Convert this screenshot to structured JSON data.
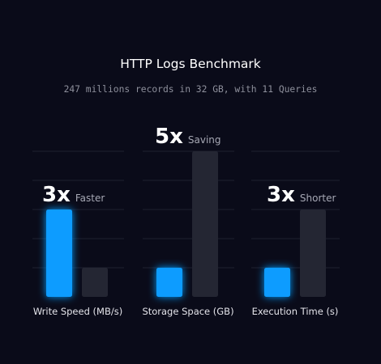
{
  "header": {
    "title": "HTTP Logs Benchmark",
    "subtitle": "247 millions records in 32 GB, with 11 Queries"
  },
  "colors": {
    "background": "#0a0b19",
    "primary_bar": "#0a9cff",
    "secondary_bar": "#242633",
    "gridline": "#1e2030"
  },
  "chart_data": [
    {
      "type": "bar",
      "xlabel": "Write Speed (MB/s)",
      "ylim": [
        0,
        6
      ],
      "grid": true,
      "values": [
        3,
        1
      ],
      "annotation": {
        "value": "3x",
        "text": "Faster"
      }
    },
    {
      "type": "bar",
      "xlabel": "Storage Space (GB)",
      "ylim": [
        0,
        6
      ],
      "grid": true,
      "values": [
        1,
        5
      ],
      "annotation": {
        "value": "5x",
        "text": "Saving"
      }
    },
    {
      "type": "bar",
      "xlabel": "Execution Time (s)",
      "ylim": [
        0,
        6
      ],
      "grid": true,
      "values": [
        1,
        3
      ],
      "annotation": {
        "value": "3x",
        "text": "Shorter"
      }
    }
  ]
}
